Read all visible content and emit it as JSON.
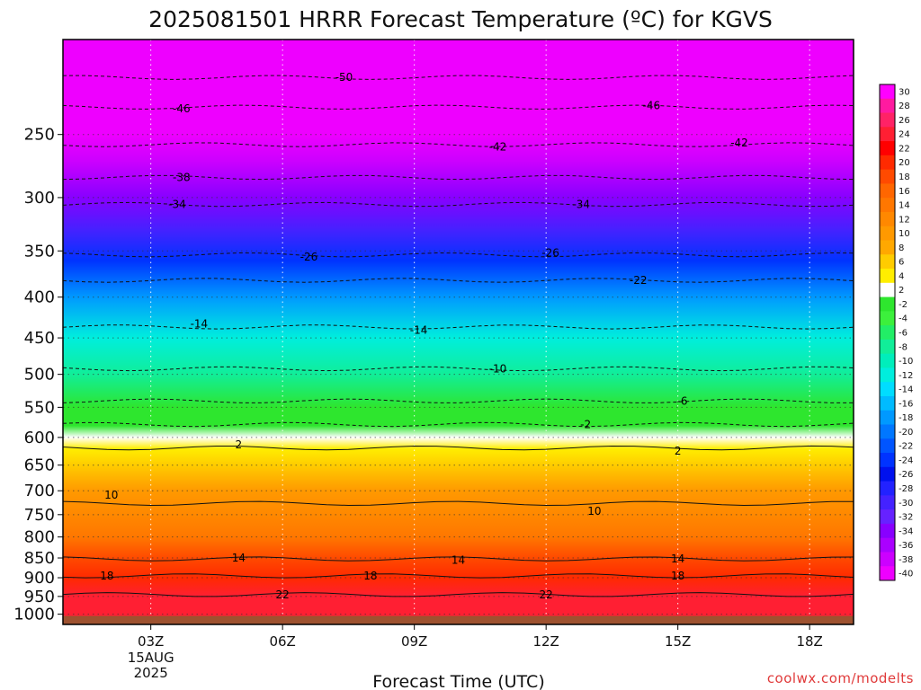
{
  "chart_data": {
    "type": "heatmap",
    "title": "2025081501 HRRR Forecast Temperature (ºC) for KGVS",
    "xlabel": "Forecast Time (UTC)",
    "x_ticks": [
      {
        "hour": 3,
        "label": "03Z",
        "sub": [
          "15AUG",
          "2025"
        ]
      },
      {
        "hour": 6,
        "label": "06Z"
      },
      {
        "hour": 9,
        "label": "09Z"
      },
      {
        "hour": 12,
        "label": "12Z"
      },
      {
        "hour": 15,
        "label": "15Z"
      },
      {
        "hour": 18,
        "label": "18Z"
      }
    ],
    "xlim": [
      1,
      19
    ],
    "y_ticks": [
      250,
      300,
      350,
      400,
      450,
      500,
      550,
      600,
      650,
      700,
      750,
      800,
      850,
      900,
      950,
      1000
    ],
    "ylim": [
      1030,
      190
    ],
    "yscale": "log",
    "grid": true,
    "temperature_layers": [
      {
        "p": 1010,
        "t": 24
      },
      {
        "p": 950,
        "t": 23
      },
      {
        "p": 900,
        "t": 20
      },
      {
        "p": 850,
        "t": 17
      },
      {
        "p": 800,
        "t": 13
      },
      {
        "p": 750,
        "t": 11
      },
      {
        "p": 700,
        "t": 9
      },
      {
        "p": 650,
        "t": 6
      },
      {
        "p": 620,
        "t": 3
      },
      {
        "p": 600,
        "t": 1
      },
      {
        "p": 580,
        "t": -1
      },
      {
        "p": 550,
        "t": -3
      },
      {
        "p": 500,
        "t": -8
      },
      {
        "p": 450,
        "t": -13
      },
      {
        "p": 400,
        "t": -19
      },
      {
        "p": 360,
        "t": -25
      },
      {
        "p": 330,
        "t": -30
      },
      {
        "p": 300,
        "t": -35
      },
      {
        "p": 270,
        "t": -39
      },
      {
        "p": 250,
        "t": -43
      },
      {
        "p": 220,
        "t": -48
      },
      {
        "p": 190,
        "t": -52
      }
    ],
    "contour_labels": [
      {
        "hour": 7.4,
        "p": 212,
        "value": "-50",
        "neg": true
      },
      {
        "hour": 3.7,
        "p": 232,
        "value": "-46",
        "neg": true
      },
      {
        "hour": 14.4,
        "p": 230,
        "value": "-46",
        "neg": true
      },
      {
        "hour": 10.9,
        "p": 259,
        "value": "-42",
        "neg": true
      },
      {
        "hour": 16.4,
        "p": 256,
        "value": "-42",
        "neg": true
      },
      {
        "hour": 3.7,
        "p": 283,
        "value": "-38",
        "neg": true
      },
      {
        "hour": 3.6,
        "p": 306,
        "value": "-34",
        "neg": true
      },
      {
        "hour": 12.8,
        "p": 306,
        "value": "-34",
        "neg": true
      },
      {
        "hour": 6.6,
        "p": 356,
        "value": "-26",
        "neg": true
      },
      {
        "hour": 12.1,
        "p": 352,
        "value": "-26",
        "neg": true
      },
      {
        "hour": 14.1,
        "p": 381,
        "value": "-22",
        "neg": true
      },
      {
        "hour": 4.1,
        "p": 432,
        "value": "-14",
        "neg": true
      },
      {
        "hour": 9.1,
        "p": 440,
        "value": "-14",
        "neg": true
      },
      {
        "hour": 10.9,
        "p": 492,
        "value": "-10",
        "neg": true
      },
      {
        "hour": 15.1,
        "p": 540,
        "value": "-6",
        "neg": true
      },
      {
        "hour": 12.9,
        "p": 578,
        "value": "-2",
        "neg": true
      },
      {
        "hour": 5.0,
        "p": 613,
        "value": "2",
        "neg": false
      },
      {
        "hour": 15.0,
        "p": 624,
        "value": "2",
        "neg": false
      },
      {
        "hour": 2.1,
        "p": 709,
        "value": "10",
        "neg": false
      },
      {
        "hour": 13.1,
        "p": 743,
        "value": "10",
        "neg": false
      },
      {
        "hour": 5.0,
        "p": 850,
        "value": "14",
        "neg": false
      },
      {
        "hour": 10.0,
        "p": 855,
        "value": "14",
        "neg": false
      },
      {
        "hour": 15.0,
        "p": 852,
        "value": "14",
        "neg": false
      },
      {
        "hour": 2.0,
        "p": 895,
        "value": "18",
        "neg": false
      },
      {
        "hour": 8.0,
        "p": 895,
        "value": "18",
        "neg": false
      },
      {
        "hour": 15.0,
        "p": 895,
        "value": "18",
        "neg": false
      },
      {
        "hour": 6.0,
        "p": 945,
        "value": "22",
        "neg": false
      },
      {
        "hour": 12.0,
        "p": 945,
        "value": "22",
        "neg": false
      }
    ],
    "colorbar": {
      "labels": [
        30,
        28,
        26,
        24,
        22,
        20,
        18,
        16,
        14,
        12,
        10,
        8,
        6,
        4,
        2,
        -2,
        -4,
        -6,
        -8,
        -10,
        -12,
        -14,
        -16,
        -18,
        -20,
        -22,
        -24,
        -26,
        -28,
        -30,
        -32,
        -34,
        -36,
        -38,
        -40
      ],
      "colors": [
        "#ff00ff",
        "#ff1aa0",
        "#ff2266",
        "#ff1f33",
        "#ff0000",
        "#ff2a00",
        "#ff4a00",
        "#ff6600",
        "#ff7700",
        "#ff8800",
        "#ff9900",
        "#ffa800",
        "#ffcc00",
        "#ffee00",
        "#ffffff",
        "#2ee62e",
        "#3cf03c",
        "#22ee66",
        "#11ee99",
        "#00eebb",
        "#00eedd",
        "#00ddff",
        "#00bbff",
        "#0099ff",
        "#0077ff",
        "#0055ff",
        "#0033ff",
        "#0011ee",
        "#2222ff",
        "#4422ff",
        "#6622ff",
        "#8800ff",
        "#aa00ff",
        "#cc00ff",
        "#ee00ff"
      ]
    }
  },
  "credit": "coolwx.com/modelts",
  "colors": {
    "ground": "#9e5230",
    "contour": "#111111"
  }
}
